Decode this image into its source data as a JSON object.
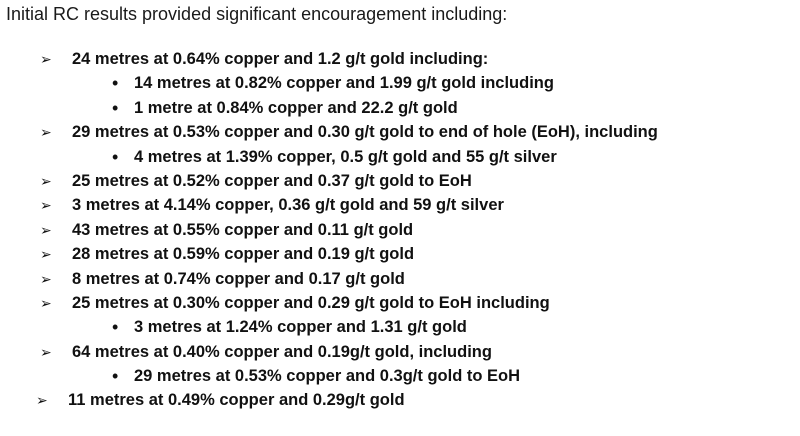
{
  "intro": "Initial RC results provided significant encouragement including:",
  "items": [
    {
      "level": 1,
      "text": "24 metres at 0.64% copper and 1.2 g/t gold including:"
    },
    {
      "level": 2,
      "text": "14 metres at 0.82% copper and 1.99 g/t gold including"
    },
    {
      "level": 2,
      "text": "1 metre at 0.84% copper and 22.2 g/t gold"
    },
    {
      "level": 1,
      "text": "29 metres at 0.53% copper and 0.30 g/t gold to end of hole (EoH), including"
    },
    {
      "level": 2,
      "text": "4 metres at 1.39% copper, 0.5 g/t gold and 55 g/t silver"
    },
    {
      "level": 1,
      "text": "25 metres at 0.52% copper and 0.37 g/t gold to EoH"
    },
    {
      "level": 1,
      "text": "3 metres at 4.14% copper, 0.36 g/t gold and 59 g/t silver"
    },
    {
      "level": 1,
      "text": "43 metres at 0.55% copper and 0.11 g/t gold"
    },
    {
      "level": 1,
      "text": "28 metres at 0.59% copper and 0.19 g/t gold"
    },
    {
      "level": 1,
      "text": "8 metres at 0.74% copper and 0.17 g/t gold"
    },
    {
      "level": 1,
      "text": "25 metres at 0.30% copper and 0.29 g/t gold to EoH including"
    },
    {
      "level": 2,
      "text": "3 metres at 1.24% copper and 1.31 g/t gold"
    },
    {
      "level": 1,
      "text": "64 metres at 0.40% copper and 0.19g/t gold, including"
    },
    {
      "level": 2,
      "text": "29 metres at 0.53% copper and 0.3g/t gold to EoH"
    },
    {
      "level": 1,
      "text": "11 metres at 0.49% copper and 0.29g/t gold"
    }
  ]
}
